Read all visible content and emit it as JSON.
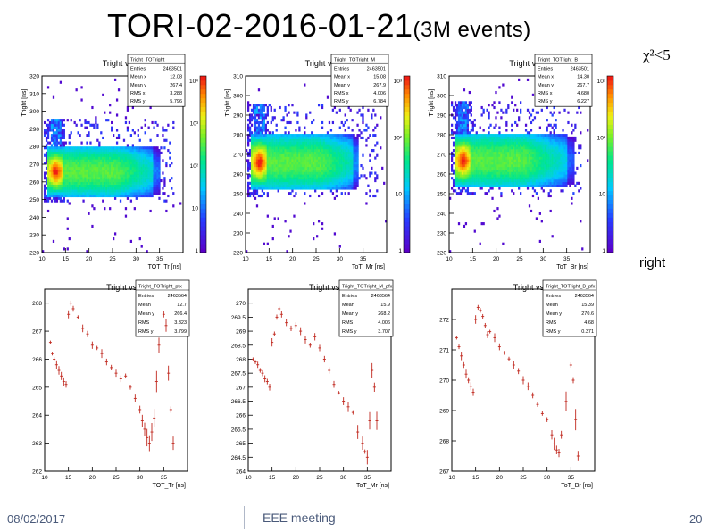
{
  "slide": {
    "title": "TORI-02-2016-01-21",
    "title_suffix": "(3M events)",
    "chi_label": "χ²<5",
    "right_label": "right",
    "footer_date": "08/02/2017",
    "footer_meeting": "EEE meeting",
    "page_number": "20"
  },
  "colors": {
    "profile_marker": "#c0281e",
    "frame": "#000000",
    "background": "#ffffff"
  },
  "chart_data": [
    {
      "type": "heatmap",
      "title": "Tright vs TOTright T",
      "xlabel": "TOT_Tr [ns]",
      "ylabel": "Tright [ns]",
      "xlim": [
        10,
        40
      ],
      "ylim": [
        220,
        320
      ],
      "xticks": [
        "10",
        "15",
        "20",
        "25",
        "30",
        "35"
      ],
      "yticks": [
        "220",
        "230",
        "240",
        "250",
        "260",
        "270",
        "280",
        "290",
        "300",
        "310",
        "320"
      ],
      "zticks": [
        "1",
        "10",
        "10²",
        "10³",
        "10⁴"
      ],
      "log_z": true,
      "stats": {
        "name": "Tright_TOTright",
        "rows": [
          [
            "Entries",
            "2463501"
          ],
          [
            "Mean x",
            "12.08"
          ],
          [
            "Mean y",
            "267.4"
          ],
          [
            "RMS x",
            "3.288"
          ],
          [
            "RMS y",
            "5.796"
          ]
        ]
      }
    },
    {
      "type": "heatmap",
      "title": "Tright vs TOTright M",
      "xlabel": "ToT_Mr [ns]",
      "ylabel": "Tright [ns]",
      "xlim": [
        10,
        40
      ],
      "ylim": [
        220,
        310
      ],
      "xticks": [
        "10",
        "15",
        "20",
        "25",
        "30",
        "35"
      ],
      "yticks": [
        "220",
        "230",
        "240",
        "250",
        "260",
        "270",
        "280",
        "290",
        "300",
        "310"
      ],
      "zticks": [
        "1",
        "10",
        "10²",
        "10³"
      ],
      "log_z": true,
      "stats": {
        "name": "Tright_TOTright_M",
        "rows": [
          [
            "Entries",
            "2463501"
          ],
          [
            "Mean x",
            "15.08"
          ],
          [
            "Mean y",
            "267.9"
          ],
          [
            "RMS x",
            "4.006"
          ],
          [
            "RMS y",
            "6.784"
          ]
        ]
      }
    },
    {
      "type": "heatmap",
      "title": "Tright vs TOTright B",
      "xlabel": "ToT_Br [ns]",
      "ylabel": "Tright [ns]",
      "xlim": [
        10,
        40
      ],
      "ylim": [
        220,
        310
      ],
      "xticks": [
        "10",
        "15",
        "20",
        "25",
        "30",
        "35"
      ],
      "yticks": [
        "220",
        "230",
        "240",
        "250",
        "260",
        "270",
        "280",
        "290",
        "300",
        "310"
      ],
      "zticks": [
        "1",
        "10",
        "10²",
        "10³"
      ],
      "log_z": true,
      "stats": {
        "name": "Tright_TOTright_B",
        "rows": [
          [
            "Entries",
            "2463501"
          ],
          [
            "Mean x",
            "14.30"
          ],
          [
            "Mean y",
            "267.7"
          ],
          [
            "RMS x",
            "4.680"
          ],
          [
            "RMS y",
            "6.227"
          ]
        ]
      }
    },
    {
      "type": "scatter",
      "title": "Tright vs TOTright T",
      "xlabel": "TOT_Tr [ns]",
      "xlim": [
        10,
        40
      ],
      "ylim": [
        262,
        268.5
      ],
      "xticks": [
        "10",
        "15",
        "20",
        "25",
        "30",
        "35"
      ],
      "yticks": [
        "262",
        "263",
        "264",
        "265",
        "266",
        "267",
        "268"
      ],
      "stats": {
        "name": "Tright_TOTright_pfx",
        "rows": [
          [
            "Entries",
            "2463564"
          ],
          [
            "Mean",
            "12.7"
          ],
          [
            "Mean y",
            "266.4"
          ],
          [
            "RMS",
            "3.323"
          ],
          [
            "RMS y",
            "3.799"
          ]
        ]
      },
      "x": [
        11.2,
        11.6,
        12.0,
        12.5,
        13.0,
        13.5,
        14.0,
        14.5,
        15.0,
        15.5,
        16.0,
        17.0,
        18.0,
        19.0,
        20.0,
        21.0,
        22.0,
        23.0,
        24.0,
        25.0,
        26.0,
        27.0,
        28.0,
        29.0,
        30.0,
        30.5,
        31.0,
        31.5,
        32.0,
        32.5,
        33.0,
        33.5,
        34.0,
        35.0,
        35.5,
        36.0,
        36.5,
        37.0
      ],
      "y": [
        266.6,
        266.2,
        266.0,
        265.8,
        265.6,
        265.4,
        265.2,
        265.1,
        267.6,
        268.0,
        267.8,
        267.5,
        267.1,
        266.9,
        266.5,
        266.4,
        266.2,
        265.9,
        265.7,
        265.5,
        265.3,
        265.4,
        265.0,
        264.6,
        264.2,
        263.8,
        263.5,
        263.2,
        263.0,
        263.4,
        263.9,
        265.2,
        266.5,
        267.6,
        267.2,
        265.5,
        264.2,
        263.0
      ]
    },
    {
      "type": "scatter",
      "title": "Tright vs TOTright M",
      "xlabel": "ToT_Mr [ns]",
      "xlim": [
        10,
        40
      ],
      "ylim": [
        264,
        270.5
      ],
      "xticks": [
        "10",
        "15",
        "20",
        "25",
        "30",
        "35"
      ],
      "yticks": [
        "264",
        "264.5",
        "265",
        "265.5",
        "266",
        "266.5",
        "267",
        "267.5",
        "268",
        "268.5",
        "269",
        "269.5",
        "270"
      ],
      "stats": {
        "name": "Tright_TOTright_M_pfx",
        "rows": [
          [
            "Entries",
            "2463564"
          ],
          [
            "Mean",
            "15.9"
          ],
          [
            "Mean y",
            "268.2"
          ],
          [
            "RMS",
            "4.006"
          ],
          [
            "RMS y",
            "3.707"
          ]
        ]
      },
      "x": [
        11.0,
        11.5,
        12.0,
        12.5,
        13.0,
        13.5,
        14.0,
        14.5,
        15.0,
        15.5,
        16.0,
        16.5,
        17.0,
        18.0,
        19.0,
        20.0,
        21.0,
        22.0,
        23.0,
        24.0,
        25.0,
        26.0,
        27.0,
        28.0,
        29.0,
        30.0,
        31.0,
        32.0,
        33.0,
        34.0,
        34.5,
        35.0,
        35.5,
        36.0,
        36.5,
        37.0
      ],
      "y": [
        268.0,
        267.9,
        267.8,
        267.6,
        267.5,
        267.3,
        267.2,
        267.0,
        268.6,
        268.9,
        269.5,
        269.8,
        269.6,
        269.3,
        269.1,
        269.2,
        269.0,
        268.7,
        268.5,
        268.8,
        268.4,
        268.0,
        267.6,
        267.1,
        266.8,
        266.5,
        266.3,
        266.1,
        265.4,
        265.0,
        264.7,
        264.5,
        265.8,
        267.6,
        267.0,
        265.8
      ]
    },
    {
      "type": "scatter",
      "title": "Tright vs TOTright B",
      "xlabel": "ToT_Br [ns]",
      "xlim": [
        10,
        40
      ],
      "ylim": [
        267,
        273
      ],
      "xticks": [
        "10",
        "15",
        "20",
        "25",
        "30",
        "35"
      ],
      "yticks": [
        "267",
        "268",
        "269",
        "270",
        "271",
        "272"
      ],
      "stats": {
        "name": "Tright_TOTright_B_pfx",
        "rows": [
          [
            "Entries",
            "2463564"
          ],
          [
            "Mean",
            "15.39"
          ],
          [
            "Mean y",
            "270.6"
          ],
          [
            "RMS",
            "4.68"
          ],
          [
            "RMS y",
            "0.371"
          ]
        ]
      },
      "x": [
        11.0,
        11.5,
        12.0,
        12.5,
        13.0,
        13.5,
        14.0,
        14.5,
        15.0,
        15.5,
        16.0,
        16.5,
        17.0,
        17.5,
        18.0,
        19.0,
        20.0,
        21.0,
        22.0,
        23.0,
        24.0,
        25.0,
        26.0,
        27.0,
        28.0,
        29.0,
        30.0,
        31.0,
        31.5,
        32.0,
        32.5,
        33.0,
        34.0,
        35.0,
        35.5,
        36.0,
        36.5
      ],
      "y": [
        271.4,
        271.1,
        270.8,
        270.5,
        270.2,
        270.0,
        269.8,
        269.6,
        272.0,
        272.4,
        272.3,
        272.1,
        271.8,
        271.5,
        271.6,
        271.4,
        271.1,
        270.9,
        270.7,
        270.5,
        270.3,
        270.0,
        269.8,
        269.5,
        269.2,
        268.9,
        268.7,
        268.2,
        267.9,
        267.7,
        267.6,
        268.2,
        269.3,
        270.5,
        270.0,
        268.7,
        267.5
      ]
    }
  ]
}
